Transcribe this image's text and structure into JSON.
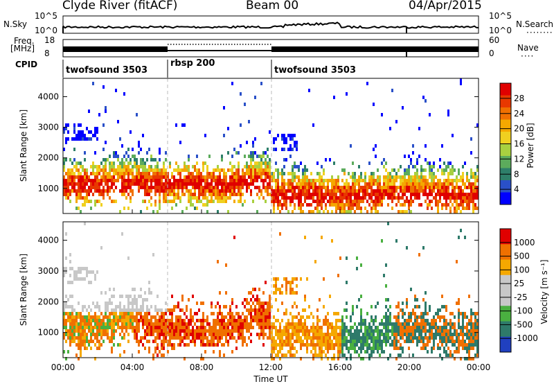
{
  "header": {
    "station": "Clyde River (fitACF)",
    "beam": "Beam 00",
    "date": "04/Apr/2015"
  },
  "top_panels": {
    "nsky_label": "N.Sky",
    "nsky_ticks": [
      "10^5",
      "10^0"
    ],
    "nsearch_label": "N.Search",
    "nsearch_ticks": [
      "10^5",
      "10^0"
    ],
    "freq_label_1": "Freq.",
    "freq_label_2": "[MHz]",
    "freq_ticks": [
      "18",
      "8"
    ],
    "nave_label": "Nave",
    "nave_ticks": [
      "60",
      "0"
    ],
    "cpid_label": "CPID",
    "cpid_segments": [
      {
        "name": "twofsound 3503",
        "start_hour": 0,
        "end_hour": 6
      },
      {
        "name": "rbsp 200",
        "start_hour": 6,
        "end_hour": 12
      },
      {
        "name": "twofsound 3503",
        "start_hour": 12,
        "end_hour": 24
      }
    ]
  },
  "chart_data": [
    {
      "type": "heatmap",
      "panel": "power",
      "ylabel": "Slant Range [km]",
      "xlim": [
        0,
        24
      ],
      "ylim": [
        180,
        4600
      ],
      "yticks": [
        1000,
        2000,
        3000,
        4000
      ],
      "colorbar_label": "Power [dB]",
      "colorbar_ticks": [
        4,
        8,
        12,
        16,
        20,
        24,
        28
      ],
      "colorbar_colors": [
        "#0000ff",
        "#2a50c8",
        "#2e7f6a",
        "#5cab5c",
        "#a8d040",
        "#f0d020",
        "#f5a800",
        "#f07000",
        "#e83800",
        "#e00000"
      ]
    },
    {
      "type": "heatmap",
      "panel": "velocity",
      "ylabel": "Slant Range [km]",
      "xlabel": "Time UT",
      "xlim": [
        0,
        24
      ],
      "ylim": [
        180,
        4600
      ],
      "yticks": [
        1000,
        2000,
        3000,
        4000
      ],
      "xticks": [
        "00:00",
        "04:00",
        "08:00",
        "12:00",
        "16:00",
        "20:00",
        "00:00"
      ],
      "colorbar_label": "Velocity [m s⁻¹]",
      "colorbar_ticks": [
        "1000",
        "500",
        "100",
        "25",
        "-25",
        "-100",
        "-500",
        "-1000"
      ],
      "colorbar_colors": [
        "#2040c0",
        "#2e7a6a",
        "#4ab040",
        "#c8c8c8",
        "#c8c8c8",
        "#f5a800",
        "#f07000",
        "#e00000"
      ]
    }
  ]
}
